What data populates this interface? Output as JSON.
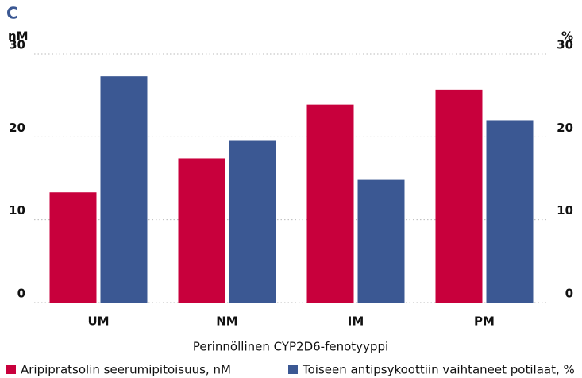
{
  "chart_data": {
    "type": "bar",
    "panel_label": "C",
    "y_label": "nM",
    "y2_label": "%",
    "x_label": "Perinnöllinen CYP2D6-fenotyyppi",
    "categories": [
      "UM",
      "NM",
      "IM",
      "PM"
    ],
    "series": [
      {
        "name": "Aripipratsolin seerumipitoisuus, nM",
        "color": "#c8003c",
        "values": [
          13.3,
          17.4,
          23.9,
          25.7
        ]
      },
      {
        "name": "Toiseen antipsykoottiin vaihtaneet potilaat, %",
        "color": "#3b5893",
        "values": [
          27.3,
          19.6,
          14.8,
          22.0
        ],
        "axis": "y2"
      }
    ],
    "ylim": [
      0,
      30
    ],
    "yticks": [
      0,
      10,
      20,
      30
    ],
    "y2lim": [
      0,
      30
    ],
    "y2ticks": [
      0,
      10,
      20,
      30
    ],
    "grid": true
  }
}
